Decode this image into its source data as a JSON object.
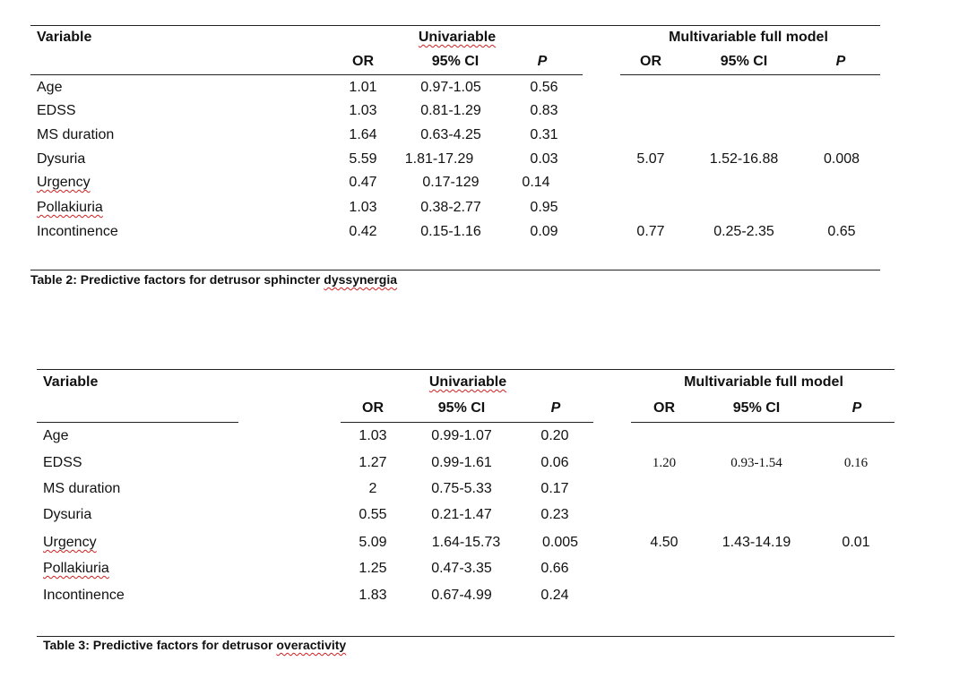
{
  "table2": {
    "header": {
      "variable": "Variable",
      "univariable": "Univariable",
      "multivariable": "Multivariable full model",
      "or": "OR",
      "ci": "95% CI",
      "p": "P"
    },
    "rows": [
      {
        "variable": "Age",
        "or": "1.01",
        "ci": "0.97-1.05",
        "p": "0.56",
        "m_or": "",
        "m_ci": "",
        "m_p": ""
      },
      {
        "variable": "EDSS",
        "or": "1.03",
        "ci": "0.81-1.29",
        "p": "0.83",
        "m_or": "",
        "m_ci": "",
        "m_p": ""
      },
      {
        "variable": "MS duration",
        "or": "1.64",
        "ci": "0.63-4.25",
        "p": "0.31",
        "m_or": "",
        "m_ci": "",
        "m_p": ""
      },
      {
        "variable": "Dysuria",
        "or": "5.59",
        "ci": "1.81-17.29",
        "p": "0.03",
        "m_or": "5.07",
        "m_ci": "1.52-16.88",
        "m_p": "0.008"
      },
      {
        "variable": "Urgency",
        "or": "0.47",
        "ci": "0.17-129",
        "p": "0.14",
        "m_or": "",
        "m_ci": "",
        "m_p": ""
      },
      {
        "variable": "Pollakiuria",
        "or": "1.03",
        "ci": "0.38-2.77",
        "p": "0.95",
        "m_or": "",
        "m_ci": "",
        "m_p": ""
      },
      {
        "variable": "Incontinence",
        "or": "0.42",
        "ci": "0.15-1.16",
        "p": "0.09",
        "m_or": "0.77",
        "m_ci": "0.25-2.35",
        "m_p": "0.65"
      }
    ],
    "caption_prefix": "Table 2: Predictive factors for detrusor sphincter ",
    "caption_last": "dyssynergia"
  },
  "table3": {
    "header": {
      "variable": "Variable",
      "univariable": "Univariable",
      "multivariable": "Multivariable full model",
      "or": "OR",
      "ci": "95% CI",
      "p": "P"
    },
    "rows": [
      {
        "variable": "Age",
        "or": "1.03",
        "ci": "0.99-1.07",
        "p": "0.20",
        "m_or": "",
        "m_ci": "",
        "m_p": ""
      },
      {
        "variable": "EDSS",
        "or": "1.27",
        "ci": "0.99-1.61",
        "p": "0.06",
        "m_or": "1.20",
        "m_ci": "0.93-1.54",
        "m_p": "0.16"
      },
      {
        "variable": "MS duration",
        "or": "2",
        "ci": "0.75-5.33",
        "p": "0.17",
        "m_or": "",
        "m_ci": "",
        "m_p": ""
      },
      {
        "variable": "Dysuria",
        "or": "0.55",
        "ci": "0.21-1.47",
        "p": "0.23",
        "m_or": "",
        "m_ci": "",
        "m_p": ""
      },
      {
        "variable": "Urgency",
        "or": "5.09",
        "ci": "1.64-15.73",
        "p": "0.005",
        "m_or": "4.50",
        "m_ci": "1.43-14.19",
        "m_p": "0.01"
      },
      {
        "variable": "Pollakiuria",
        "or": "1.25",
        "ci": "0.47-3.35",
        "p": "0.66",
        "m_or": "",
        "m_ci": "",
        "m_p": ""
      },
      {
        "variable": "Incontinence",
        "or": "1.83",
        "ci": "0.67-4.99",
        "p": "0.24",
        "m_or": "",
        "m_ci": "",
        "m_p": ""
      }
    ],
    "caption_prefix": "Table 3: Predictive factors for detrusor ",
    "caption_last": "overactivity"
  }
}
